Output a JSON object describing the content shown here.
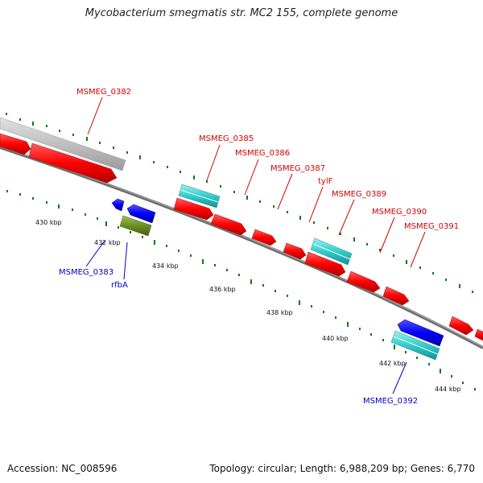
{
  "title": "Mycobacterium smegmatis str. MC2 155, complete genome",
  "footer": {
    "accession": "Accession: NC_008596",
    "summary": "Topology: circular; Length: 6,988,209 bp; Genes: 6,770"
  },
  "scale_labels": [
    "430 kbp",
    "432 kbp",
    "434 kbp",
    "436 kbp",
    "438 kbp",
    "440 kbp",
    "442 kbp",
    "444 kbp"
  ],
  "genes": {
    "MSMEG_0382": "MSMEG_0382",
    "MSMEG_0383": "MSMEG_0383",
    "rfbA": "rfbA",
    "MSMEG_0385": "MSMEG_0385",
    "MSMEG_0386": "MSMEG_0386",
    "MSMEG_0387": "MSMEG_0387",
    "tylF": "tylF",
    "MSMEG_0389": "MSMEG_0389",
    "MSMEG_0390": "MSMEG_0390",
    "MSMEG_0391": "MSMEG_0391",
    "MSMEG_0392": "MSMEG_0392"
  },
  "colors": {
    "forward_cds": "#ff0000",
    "reverse_cds": "#0000ff",
    "trna_rrna": "#33cccc",
    "other": "#6b8e23",
    "pseudogene": "#c0c0c0",
    "ticks": "#0a7a0a"
  }
}
